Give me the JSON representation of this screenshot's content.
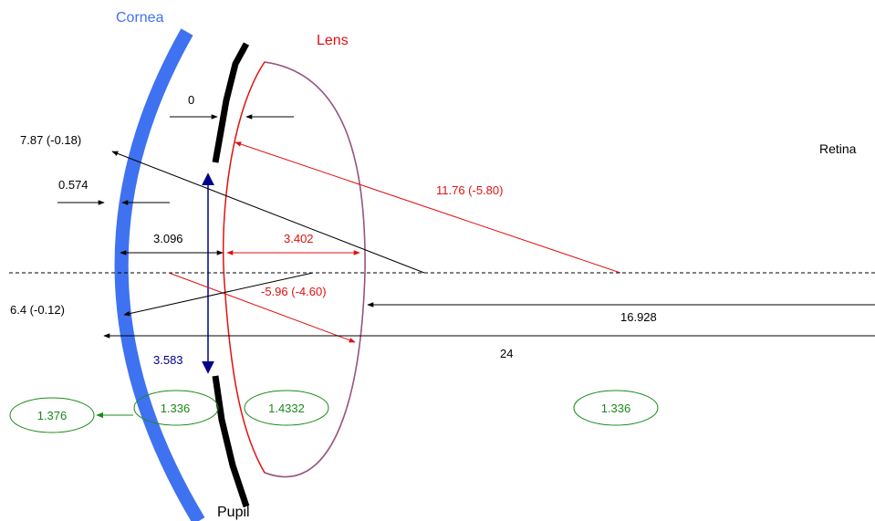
{
  "labels": {
    "cornea": "Cornea",
    "lens": "Lens",
    "retina": "Retina",
    "pupil": "Pupil"
  },
  "measurements": {
    "pupil_offset": "0",
    "anterior_cornea_radius": "7.87 (-0.18)",
    "cornea_thickness": "0.574",
    "anterior_chamber_depth": "3.096",
    "lens_thickness": "3.402",
    "anterior_lens_radius": "11.76 (-5.80)",
    "posterior_lens_radius": "-5.96 (-4.60)",
    "posterior_cornea_radius": "6.4 (-0.12)",
    "vitreous_depth": "16.928",
    "axial_length": "24",
    "pupil_diameter": "3.583"
  },
  "refractive_indices": {
    "cornea": "1.376",
    "aqueous": "1.336",
    "lens": "1.4332",
    "vitreous": "1.336"
  },
  "colors": {
    "cornea": "#3f72f0",
    "lens": "#e01010",
    "index": "#1a8a1a",
    "pupil_arrow": "#00008b",
    "dimension": "#000000"
  }
}
